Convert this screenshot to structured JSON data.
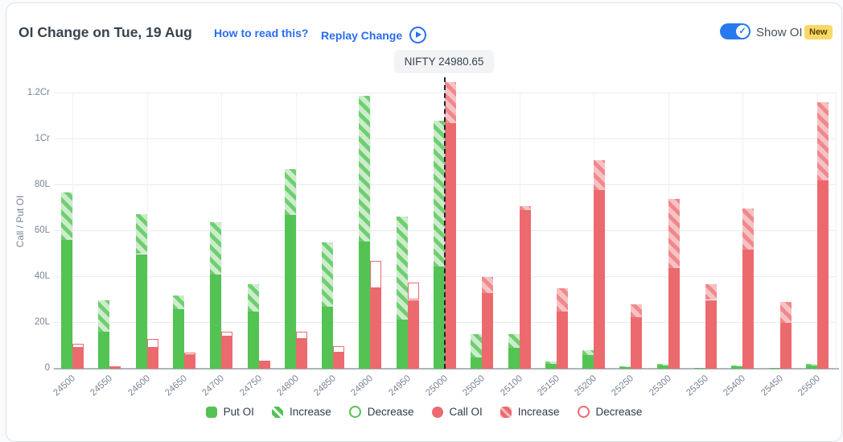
{
  "header": {
    "how_to_link": "How to read this?",
    "replay_link": "Replay Change",
    "show_oi_label": "Show OI",
    "new_badge": "New",
    "toggle_state": "on"
  },
  "colors": {
    "put_green": "#53c353",
    "put_green_light": "#cdeccd",
    "call_red": "#ec6a6e",
    "call_red_light": "#f6c2c4",
    "link_blue": "#2a6cf4",
    "toggle_blue": "#2878f0",
    "badge_yellow": "#f9d868",
    "spot_line": "#1c2430"
  },
  "chart_data": {
    "type": "bar",
    "title": "OI Change on Tue, 19 Aug",
    "ylabel": "Call / Put OI",
    "y_ticks": [
      "0",
      "20L",
      "40L",
      "60L",
      "80L",
      "1Cr",
      "1.2Cr"
    ],
    "ylim_lakh": [
      0,
      120
    ],
    "unit_note": "values in lakh (L); 1Cr = 100L",
    "grid": true,
    "legend_position": "bottom",
    "spot_label": "NIFTY 24980.65",
    "spot_value": 24980.65,
    "spot_line_at_strike": 25000,
    "strikes": [
      24500,
      24550,
      24600,
      24650,
      24700,
      24750,
      24800,
      24850,
      24900,
      24950,
      25000,
      25050,
      25100,
      25150,
      25200,
      25250,
      25300,
      25350,
      25400,
      25450,
      25500
    ],
    "series": [
      {
        "name": "Put OI",
        "role": "put",
        "data": [
          {
            "oi": 56,
            "increase": 21,
            "decrease": 0
          },
          {
            "oi": 16,
            "increase": 14,
            "decrease": 0
          },
          {
            "oi": 50,
            "increase": 17.5,
            "decrease": 0
          },
          {
            "oi": 26,
            "increase": 6,
            "decrease": 0
          },
          {
            "oi": 41,
            "increase": 23,
            "decrease": 0
          },
          {
            "oi": 25,
            "increase": 12,
            "decrease": 0
          },
          {
            "oi": 67,
            "increase": 20,
            "decrease": 0
          },
          {
            "oi": 27,
            "increase": 28,
            "decrease": 0
          },
          {
            "oi": 55.5,
            "increase": 63.5,
            "decrease": 0
          },
          {
            "oi": 21.5,
            "increase": 45,
            "decrease": 0
          },
          {
            "oi": 44.5,
            "increase": 63.5,
            "decrease": 0
          },
          {
            "oi": 5,
            "increase": 10,
            "decrease": 0
          },
          {
            "oi": 9,
            "increase": 6,
            "decrease": 0
          },
          {
            "oi": 2,
            "increase": 1,
            "decrease": 0
          },
          {
            "oi": 6,
            "increase": 2,
            "decrease": 0
          },
          {
            "oi": 0.8,
            "increase": 0.2,
            "decrease": 0
          },
          {
            "oi": 1.5,
            "increase": 0.5,
            "decrease": 0
          },
          {
            "oi": 0.5,
            "increase": 0,
            "decrease": 0
          },
          {
            "oi": 1,
            "increase": 0.3,
            "decrease": 0
          },
          {
            "oi": 0.5,
            "increase": 0,
            "decrease": 0
          },
          {
            "oi": 1.5,
            "increase": 0.5,
            "decrease": 0
          }
        ]
      },
      {
        "name": "Call OI",
        "role": "call",
        "data": [
          {
            "oi": 9,
            "increase": 0,
            "decrease": 2
          },
          {
            "oi": 1.2,
            "increase": 0,
            "decrease": 0
          },
          {
            "oi": 9,
            "increase": 0,
            "decrease": 4
          },
          {
            "oi": 6,
            "increase": 0,
            "decrease": 1
          },
          {
            "oi": 14,
            "increase": 0,
            "decrease": 2
          },
          {
            "oi": 3,
            "increase": 0,
            "decrease": 0.5
          },
          {
            "oi": 13,
            "increase": 0,
            "decrease": 3
          },
          {
            "oi": 7,
            "increase": 0,
            "decrease": 3
          },
          {
            "oi": 35,
            "increase": 0,
            "decrease": 12
          },
          {
            "oi": 30,
            "increase": 0,
            "decrease": 7.5
          },
          {
            "oi": 107,
            "increase": 18,
            "decrease": 0
          },
          {
            "oi": 33,
            "increase": 7,
            "decrease": 0
          },
          {
            "oi": 69,
            "increase": 2,
            "decrease": 0
          },
          {
            "oi": 25,
            "increase": 10,
            "decrease": 0
          },
          {
            "oi": 78,
            "increase": 13,
            "decrease": 0
          },
          {
            "oi": 22.5,
            "increase": 5.5,
            "decrease": 0
          },
          {
            "oi": 44,
            "increase": 30,
            "decrease": 0
          },
          {
            "oi": 30,
            "increase": 7,
            "decrease": 0
          },
          {
            "oi": 52,
            "increase": 18,
            "decrease": 0
          },
          {
            "oi": 20,
            "increase": 9,
            "decrease": 0
          },
          {
            "oi": 82,
            "increase": 34,
            "decrease": 0
          }
        ]
      }
    ],
    "legend": [
      {
        "label": "Put OI",
        "swatch": "green-solid-square"
      },
      {
        "label": "Increase",
        "swatch": "green-hatch-square"
      },
      {
        "label": "Decrease",
        "swatch": "green-outline-circle"
      },
      {
        "label": "Call OI",
        "swatch": "red-solid-circle"
      },
      {
        "label": "Increase",
        "swatch": "red-hatch-square"
      },
      {
        "label": "Decrease",
        "swatch": "red-outline-circle"
      }
    ]
  }
}
